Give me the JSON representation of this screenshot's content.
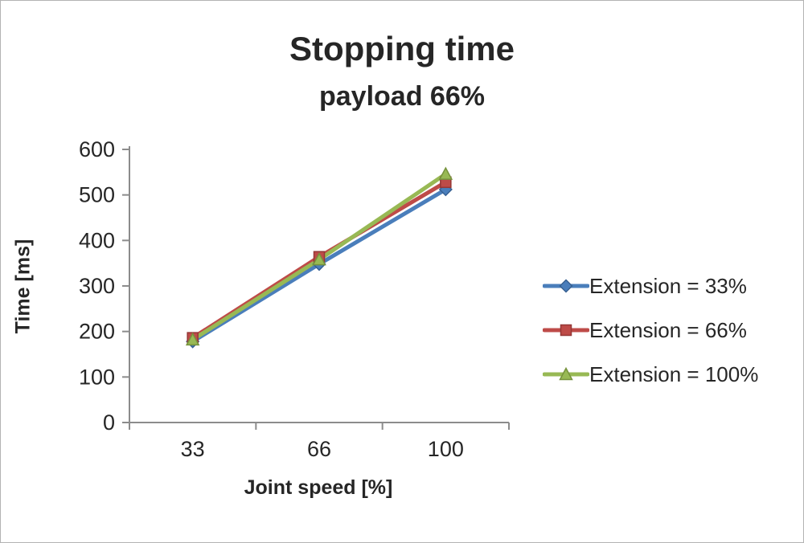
{
  "title": "Stopping time",
  "subtitle": "payload 66%",
  "chart_data": {
    "type": "line",
    "title": "Stopping time",
    "subtitle": "payload 66%",
    "categories": [
      "33",
      "66",
      "100"
    ],
    "series": [
      {
        "name": "Extension = 33%",
        "marker": "diamond",
        "line_color": "#4A7EBB",
        "edge_color": "#376092",
        "values": [
          178,
          348,
          512
        ]
      },
      {
        "name": "Extension = 66%",
        "marker": "square",
        "line_color": "#BE4B48",
        "edge_color": "#953735",
        "values": [
          186,
          364,
          528
        ]
      },
      {
        "name": "Extension = 100%",
        "marker": "triangle",
        "line_color": "#98B954",
        "edge_color": "#76923C",
        "values": [
          182,
          358,
          546
        ]
      }
    ],
    "xlabel": "Joint speed [%]",
    "ylabel": "Time [ms]",
    "ylim": [
      0,
      600
    ],
    "ytick_step": 100,
    "ytick_labels": [
      "0",
      "100",
      "200",
      "300",
      "400",
      "500",
      "600"
    ],
    "grid": false,
    "legend_position": "right",
    "axis_color": "#8c8c8c"
  }
}
